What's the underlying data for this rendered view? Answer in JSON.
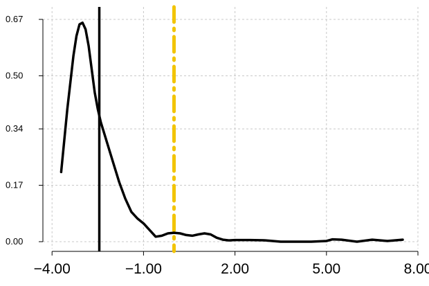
{
  "chart_data": {
    "type": "line",
    "title": "",
    "xlabel": "",
    "ylabel": "",
    "xlim": [
      -4.3,
      8.0
    ],
    "ylim": [
      0.0,
      0.67
    ],
    "grid": true,
    "x_ticks": [
      {
        "value": -4.0,
        "label": "−4.00"
      },
      {
        "value": -1.0,
        "label": "−1.00"
      },
      {
        "value": 2.0,
        "label": "2.00"
      },
      {
        "value": 5.0,
        "label": "5.00"
      },
      {
        "value": 8.0,
        "label": "8.00"
      }
    ],
    "y_ticks": [
      {
        "value": 0.0,
        "label": "0.00"
      },
      {
        "value": 0.17,
        "label": "0.17"
      },
      {
        "value": 0.34,
        "label": "0.34"
      },
      {
        "value": 0.5,
        "label": "0.50"
      },
      {
        "value": 0.67,
        "label": "0.67"
      }
    ],
    "series": [
      {
        "color": "#000000",
        "x": [
          -3.7,
          -3.5,
          -3.3,
          -3.2,
          -3.1,
          -3.0,
          -2.9,
          -2.8,
          -2.7,
          -2.6,
          -2.5,
          -2.4,
          -2.2,
          -2.0,
          -1.8,
          -1.6,
          -1.4,
          -1.2,
          -1.0,
          -0.8,
          -0.6,
          -0.4,
          -0.2,
          0.0,
          0.2,
          0.4,
          0.6,
          0.8,
          1.0,
          1.2,
          1.4,
          1.6,
          1.8,
          2.0,
          2.5,
          3.0,
          3.5,
          4.0,
          4.5,
          5.0,
          5.2,
          5.5,
          6.0,
          6.5,
          7.0,
          7.5
        ],
        "y": [
          0.21,
          0.4,
          0.56,
          0.62,
          0.655,
          0.66,
          0.64,
          0.59,
          0.52,
          0.45,
          0.4,
          0.36,
          0.3,
          0.24,
          0.18,
          0.13,
          0.09,
          0.07,
          0.055,
          0.035,
          0.015,
          0.018,
          0.025,
          0.027,
          0.025,
          0.02,
          0.018,
          0.022,
          0.025,
          0.022,
          0.012,
          0.006,
          0.004,
          0.005,
          0.005,
          0.004,
          0.0,
          0.0,
          0.0,
          0.002,
          0.007,
          0.006,
          0.0,
          0.006,
          0.002,
          0.006
        ]
      }
    ],
    "vlines": [
      {
        "x": -2.45,
        "color": "#000000",
        "style": "solid"
      },
      {
        "x": 0.0,
        "color": "#f2c400",
        "style": "dashdot"
      }
    ]
  }
}
